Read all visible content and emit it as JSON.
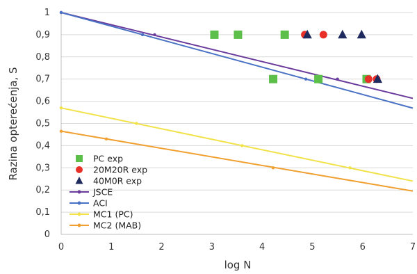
{
  "chart_data": {
    "type": "line",
    "xlabel": "log N",
    "ylabel": "Razina opterećenja, S",
    "xlim": [
      0,
      7
    ],
    "ylim": [
      0,
      1
    ],
    "x_ticks": [
      "0",
      "1",
      "2",
      "3",
      "4",
      "5",
      "6",
      "7"
    ],
    "y_ticks": [
      "0",
      "0,1",
      "0,2",
      "0,3",
      "0,4",
      "0,5",
      "0,6",
      "0,7",
      "0,8",
      "0,9",
      "1"
    ],
    "grid": "horizontal",
    "legend_placement": "bottom-left",
    "series": [
      {
        "name": "PC exp",
        "kind": "scatter",
        "marker": "square",
        "color": "#5cbf4a",
        "points": [
          [
            3.05,
            0.9
          ],
          [
            3.52,
            0.9
          ],
          [
            4.45,
            0.9
          ],
          [
            4.22,
            0.7
          ],
          [
            5.12,
            0.7
          ],
          [
            6.08,
            0.7
          ]
        ]
      },
      {
        "name": "20M20R exp",
        "kind": "scatter",
        "marker": "circle",
        "color": "#e83028",
        "points": [
          [
            4.85,
            0.9
          ],
          [
            5.22,
            0.9
          ],
          [
            6.12,
            0.7
          ],
          [
            6.28,
            0.7
          ]
        ]
      },
      {
        "name": "40M0R exp",
        "kind": "scatter",
        "marker": "triangle",
        "color": "#1f2a5e",
        "points": [
          [
            4.9,
            0.9
          ],
          [
            5.6,
            0.9
          ],
          [
            5.98,
            0.9
          ],
          [
            6.3,
            0.7
          ]
        ]
      },
      {
        "name": "JSCE",
        "kind": "line",
        "color": "#6a3a9c",
        "points": [
          [
            0,
            1.0
          ],
          [
            7,
            0.613
          ]
        ],
        "markers": [
          [
            1.86,
            0.9
          ],
          [
            5.5,
            0.7
          ]
        ]
      },
      {
        "name": "ACI",
        "kind": "line",
        "color": "#4a72c4",
        "points": [
          [
            0,
            1.0
          ],
          [
            7,
            0.569
          ]
        ],
        "markers": [
          [
            1.62,
            0.9
          ],
          [
            4.87,
            0.7
          ]
        ]
      },
      {
        "name": "MC1 (PC)",
        "kind": "line",
        "color": "#f2e24a",
        "points": [
          [
            0,
            0.57
          ],
          [
            7,
            0.24
          ]
        ],
        "markers": [
          [
            1.5,
            0.5
          ],
          [
            3.6,
            0.4
          ],
          [
            5.75,
            0.3
          ]
        ]
      },
      {
        "name": "MC2 (MAB)",
        "kind": "line",
        "color": "#f0a030",
        "points": [
          [
            0,
            0.465
          ],
          [
            7,
            0.195
          ]
        ],
        "markers": [
          [
            0.9,
            0.43
          ],
          [
            4.22,
            0.3
          ]
        ]
      }
    ]
  }
}
